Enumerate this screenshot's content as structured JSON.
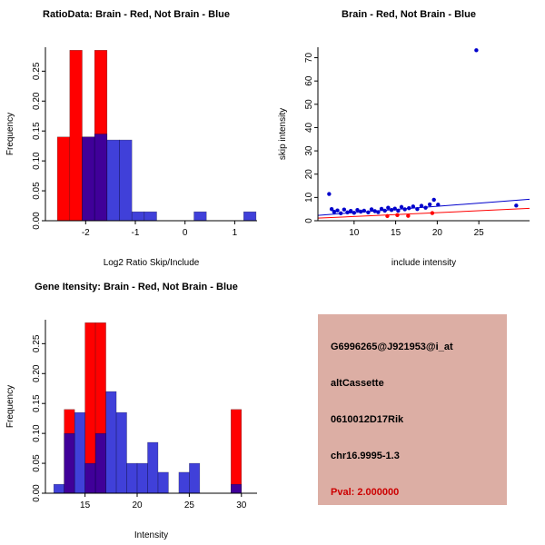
{
  "window": {
    "background": "#FFFFFF"
  },
  "colors": {
    "brain_red": "#FF0000",
    "not_brain_blue": "#0000CC",
    "axis": "#000000"
  },
  "chart_data": [
    {
      "type": "histogram",
      "title": "RatioData: Brain - Red, Not Brain - Blue",
      "xlabel": "Log2 Ratio Skip/Include",
      "ylabel": "Frequency",
      "xlim": [
        -2.81,
        1.45
      ],
      "ylim": [
        0,
        0.29
      ],
      "grid": false,
      "xticks": [
        {
          "v": -2,
          "label": "-2"
        },
        {
          "v": -1,
          "label": "-1"
        },
        {
          "v": 0,
          "label": "0"
        },
        {
          "v": 1,
          "label": "1"
        }
      ],
      "yticks": [
        {
          "v": 0,
          "label": "0.00"
        },
        {
          "v": 0.05,
          "label": "0.05"
        },
        {
          "v": 0.1,
          "label": "0.10"
        },
        {
          "v": 0.15,
          "label": "0.15"
        },
        {
          "v": 0.2,
          "label": "0.20"
        },
        {
          "v": 0.25,
          "label": "0.25"
        }
      ],
      "series": [
        {
          "name": "Brain",
          "color": "#FF0000",
          "opacity": 1,
          "start": -2.57,
          "binwidth": 0.25,
          "heights": [
            0.14,
            0.285,
            0.14,
            0.285
          ]
        },
        {
          "name": "Not Brain",
          "color": "#0000CC",
          "opacity": 0.75,
          "start": -2.07,
          "binwidth": 0.25,
          "heights": [
            0.14,
            0.145,
            0.135,
            0.135,
            0.015,
            0.015,
            0,
            0,
            0,
            0.015,
            0,
            0,
            0,
            0.015
          ]
        }
      ]
    },
    {
      "type": "scatter",
      "title": "Brain - Red, Not Brain - Blue",
      "xlabel": "include intensity",
      "ylabel": "skip intensity",
      "xlim": [
        5.65,
        31.1
      ],
      "ylim": [
        0,
        74.5
      ],
      "grid": false,
      "xticks": [
        {
          "v": 10,
          "label": "10"
        },
        {
          "v": 15,
          "label": "15"
        },
        {
          "v": 20,
          "label": "20"
        },
        {
          "v": 25,
          "label": "25"
        }
      ],
      "yticks": [
        {
          "v": 0,
          "label": "0"
        },
        {
          "v": 10,
          "label": "10"
        },
        {
          "v": 20,
          "label": "20"
        },
        {
          "v": 30,
          "label": "30"
        },
        {
          "v": 40,
          "label": "40"
        },
        {
          "v": 50,
          "label": "50"
        },
        {
          "v": 60,
          "label": "60"
        },
        {
          "v": 70,
          "label": "70"
        }
      ],
      "series": [
        {
          "name": "Not Brain",
          "color": "#0000CC",
          "points": [
            [
              7,
              11.5
            ],
            [
              7.3,
              5
            ],
            [
              7.6,
              3.8
            ],
            [
              8,
              4.4
            ],
            [
              8.4,
              3.2
            ],
            [
              8.8,
              4.8
            ],
            [
              9.2,
              3.6
            ],
            [
              9.6,
              4.2
            ],
            [
              10,
              3.4
            ],
            [
              10.4,
              4.6
            ],
            [
              10.8,
              3.9
            ],
            [
              11.2,
              4.3
            ],
            [
              11.7,
              3.6
            ],
            [
              12.1,
              4.9
            ],
            [
              12.5,
              4.1
            ],
            [
              12.9,
              3.7
            ],
            [
              13.3,
              5.1
            ],
            [
              13.7,
              4.3
            ],
            [
              14.1,
              5.6
            ],
            [
              14.5,
              4.6
            ],
            [
              14.9,
              5.2
            ],
            [
              15.3,
              4.3
            ],
            [
              15.7,
              5.9
            ],
            [
              16.1,
              4.9
            ],
            [
              16.6,
              5.4
            ],
            [
              17.1,
              6.1
            ],
            [
              17.6,
              5
            ],
            [
              18.1,
              6.4
            ],
            [
              18.6,
              5.6
            ],
            [
              19.1,
              7
            ],
            [
              19.6,
              9
            ],
            [
              20.1,
              6.9
            ],
            [
              24.7,
              73.2
            ],
            [
              29.5,
              6.5
            ]
          ]
        },
        {
          "name": "Brain",
          "color": "#FF0000",
          "points": [
            [
              14,
              2
            ],
            [
              15.2,
              2.4
            ],
            [
              16.5,
              2.1
            ],
            [
              19.4,
              3.3
            ]
          ]
        }
      ],
      "lines": [
        {
          "name": "not-brain-fit",
          "color": "#0000CC",
          "x1": 5.65,
          "y1": 2.3,
          "x2": 31.1,
          "y2": 9.2
        },
        {
          "name": "brain-fit",
          "color": "#FF0000",
          "x1": 5.65,
          "y1": 1.1,
          "x2": 31.1,
          "y2": 5.3
        }
      ]
    },
    {
      "type": "histogram",
      "title": "Gene Itensity: Brain - Red, Not Brain - Blue",
      "xlabel": "Intensity",
      "ylabel": "Frequency",
      "xlim": [
        11.2,
        31.5
      ],
      "ylim": [
        0,
        0.29
      ],
      "grid": false,
      "xticks": [
        {
          "v": 15,
          "label": "15"
        },
        {
          "v": 20,
          "label": "20"
        },
        {
          "v": 25,
          "label": "25"
        },
        {
          "v": 30,
          "label": "30"
        }
      ],
      "yticks": [
        {
          "v": 0,
          "label": "0.00"
        },
        {
          "v": 0.05,
          "label": "0.05"
        },
        {
          "v": 0.1,
          "label": "0.10"
        },
        {
          "v": 0.15,
          "label": "0.15"
        },
        {
          "v": 0.2,
          "label": "0.20"
        },
        {
          "v": 0.25,
          "label": "0.25"
        }
      ],
      "series": [
        {
          "name": "Brain",
          "color": "#FF0000",
          "opacity": 1,
          "start": 13,
          "binwidth": 1,
          "heights": [
            0.14,
            0,
            0.285,
            0.285,
            0,
            0,
            0,
            0,
            0,
            0,
            0,
            0,
            0,
            0,
            0,
            0,
            0.14
          ]
        },
        {
          "name": "Not Brain",
          "color": "#0000CC",
          "opacity": 0.75,
          "start": 12,
          "binwidth": 1,
          "heights": [
            0.015,
            0.1,
            0.135,
            0.05,
            0.1,
            0.17,
            0.135,
            0.05,
            0.05,
            0.085,
            0.035,
            0,
            0.035,
            0.05,
            0,
            0,
            0,
            0.015
          ]
        }
      ]
    }
  ],
  "info_panel": {
    "bg_color": "#DCAEA4",
    "lines": [
      {
        "text": "G6996265@J921953@i_at",
        "color": "#000000"
      },
      {
        "text": "altCassette",
        "color": "#000000"
      },
      {
        "text": "0610012D17Rik",
        "color": "#000000"
      },
      {
        "text": "chr16.9995-1.3",
        "color": "#000000"
      },
      {
        "text": "Pval: 2.000000",
        "color": "#CC0000"
      }
    ]
  }
}
